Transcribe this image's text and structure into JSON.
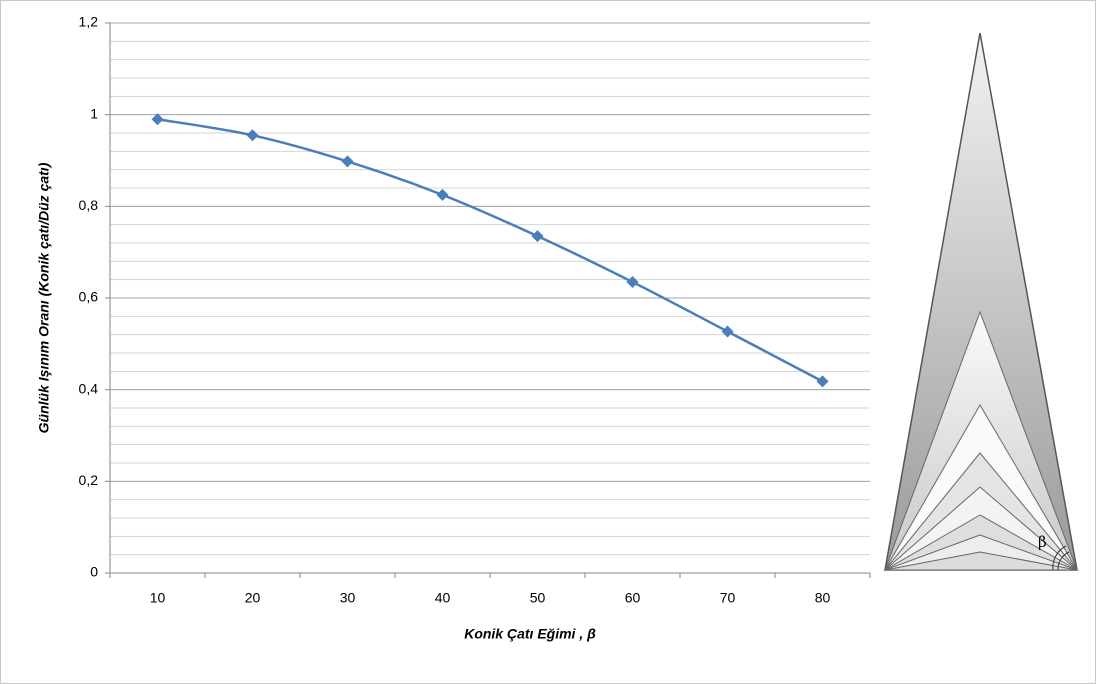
{
  "chart_data": {
    "type": "line",
    "y_label": "Günlük Işınım Oranı (Konik çatı/Düz çatı)",
    "x_label": "Konik Çatı Eğimi , β",
    "categories": [
      10,
      20,
      30,
      40,
      50,
      60,
      70,
      80
    ],
    "series": [
      {
        "color": "#4a7ebb",
        "values": [
          0.99,
          0.955,
          0.898,
          0.825,
          0.735,
          0.635,
          0.527,
          0.418
        ]
      }
    ],
    "ylim": [
      0,
      1.2
    ],
    "yticks": [
      0,
      {
        "value": 0.2,
        "label": "0,2"
      },
      {
        "value": 0.4,
        "label": "0,4"
      },
      {
        "value": 0.6,
        "label": "0,6"
      },
      {
        "value": 0.8,
        "label": "0,8"
      },
      1,
      {
        "value": 1.2,
        "label": "1,2"
      }
    ],
    "grid": true,
    "minor_grid_step": 0.04
  },
  "diagram": {
    "label": "β"
  }
}
